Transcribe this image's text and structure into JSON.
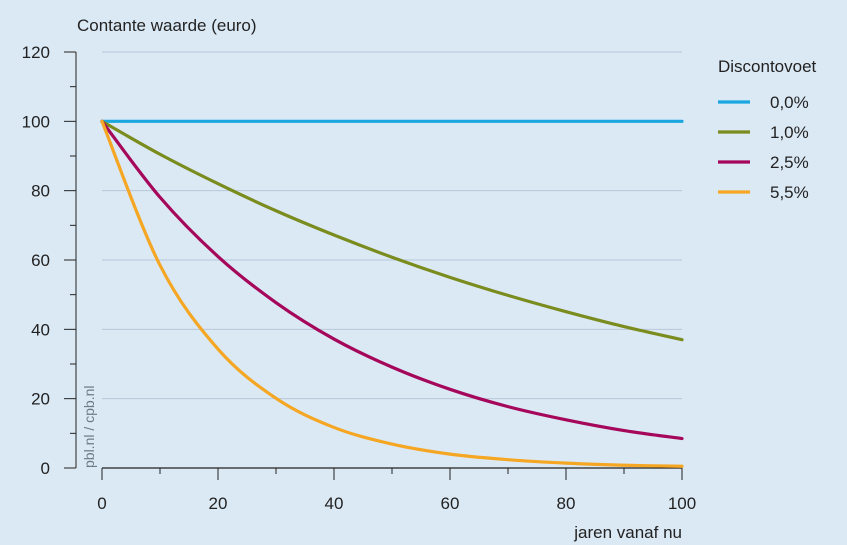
{
  "chart_data": {
    "type": "line",
    "ylabel": "Contante waarde (euro)",
    "xlabel": "jaren vanaf nu",
    "xlim": [
      0,
      100
    ],
    "ylim": [
      0,
      120
    ],
    "x_ticks": [
      "0",
      "20",
      "40",
      "60",
      "80",
      "100"
    ],
    "y_ticks": [
      "0",
      "20",
      "40",
      "60",
      "80",
      "100",
      "120"
    ],
    "grid": true,
    "legend_title": "Discontovoet",
    "legend_position": "right",
    "source": "pbl.nl / cpb.nl",
    "x": [
      0,
      10,
      20,
      30,
      40,
      50,
      60,
      70,
      80,
      90,
      100
    ],
    "series": [
      {
        "name": "0,0%",
        "color": "#1aa7e0",
        "values": [
          100,
          100,
          100,
          100,
          100,
          100,
          100,
          100,
          100,
          100,
          100
        ]
      },
      {
        "name": "1,0%",
        "color": "#7b8c1f",
        "values": [
          100,
          90.5,
          82.0,
          74.2,
          67.2,
          60.8,
          55.0,
          49.8,
          45.1,
          40.8,
          37.0
        ]
      },
      {
        "name": "2,5%",
        "color": "#a5075a",
        "values": [
          100,
          78.1,
          61.0,
          47.7,
          37.2,
          29.1,
          22.7,
          17.7,
          13.9,
          10.8,
          8.5
        ]
      },
      {
        "name": "5,5%",
        "color": "#f5a623",
        "values": [
          100,
          58.5,
          34.3,
          20.1,
          11.7,
          6.9,
          4.0,
          2.4,
          1.4,
          0.8,
          0.5
        ]
      }
    ]
  }
}
